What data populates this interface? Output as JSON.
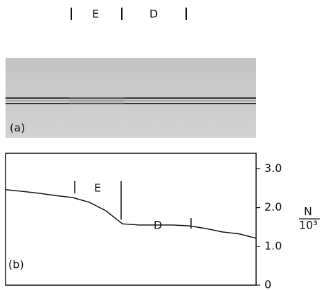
{
  "panel_a": {
    "label": "(a)",
    "region_labels": [
      "E",
      "D"
    ]
  },
  "chart_data": {
    "type": "line",
    "panel_label": "(b)",
    "values": [
      2.46,
      2.42,
      2.37,
      2.31,
      2.26,
      2.14,
      1.92,
      1.58,
      1.55,
      1.55,
      1.55,
      1.53,
      1.46,
      1.37,
      1.32,
      1.21
    ],
    "color": "#111111",
    "ylim": [
      0,
      3.4
    ],
    "yticks": [
      0,
      {
        "value": 1,
        "label": "1.0"
      },
      {
        "value": 2,
        "label": "2.0"
      },
      {
        "value": 3,
        "label": "3.0"
      }
    ],
    "y_label_numerator": "N",
    "y_label_denominator": "10³",
    "annotations": [
      "E",
      "D"
    ]
  }
}
